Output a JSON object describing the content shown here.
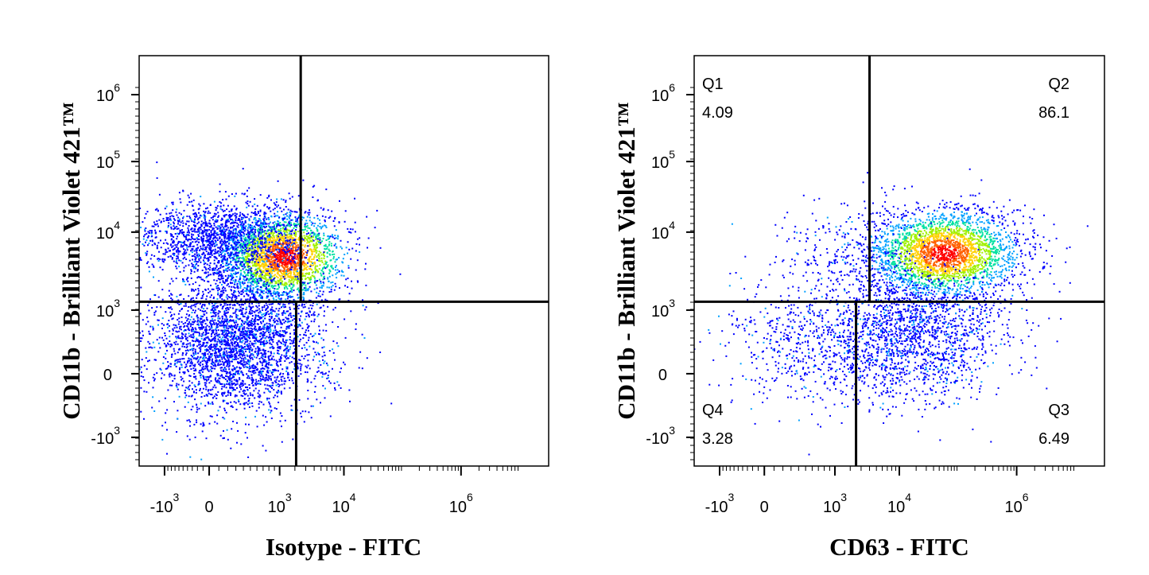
{
  "chart_data": [
    {
      "type": "scatter",
      "title": "",
      "xlabel": "Isotype - FITC",
      "ylabel": "CD11b - Brilliant Violet 421™",
      "x_scale": "biexponential",
      "y_scale": "biexponential",
      "x_ticks": [
        {
          "value": -1000,
          "base": "-10",
          "exp": "3"
        },
        {
          "value": 0,
          "base": "0",
          "exp": ""
        },
        {
          "value": 1000,
          "base": "10",
          "exp": "3"
        },
        {
          "value": 10000,
          "base": "10",
          "exp": "4"
        },
        {
          "value": 1000000,
          "base": "10",
          "exp": "6"
        }
      ],
      "y_ticks": [
        {
          "value": -1000,
          "base": "-10",
          "exp": "3"
        },
        {
          "value": 0,
          "base": "0",
          "exp": ""
        },
        {
          "value": 1000,
          "base": "10",
          "exp": "3"
        },
        {
          "value": 10000,
          "base": "10",
          "exp": "4"
        },
        {
          "value": 100000,
          "base": "10",
          "exp": "5"
        },
        {
          "value": 1000000,
          "base": "10",
          "exp": "6"
        }
      ],
      "gate": {
        "x": 2500,
        "y": 1400
      },
      "populations": [
        {
          "x_center": 1300,
          "y_center": 5500,
          "note": "dense high-CD11b cluster"
        },
        {
          "x_center": -200,
          "y_center": 9000,
          "note": "sparse high-CD11b spread"
        },
        {
          "x_center": 300,
          "y_center": 300,
          "note": "low-CD11b cloud"
        }
      ],
      "quadrants": [],
      "colormap": [
        "#0000ff",
        "#00a0ff",
        "#00e0a0",
        "#a0f000",
        "#ffd000",
        "#ff6000",
        "#ff0000"
      ]
    },
    {
      "type": "scatter",
      "title": "",
      "xlabel": "CD63 - FITC",
      "ylabel": "CD11b - Brilliant Violet 421™",
      "x_scale": "biexponential",
      "y_scale": "biexponential",
      "x_ticks": [
        {
          "value": -1000,
          "base": "-10",
          "exp": "3"
        },
        {
          "value": 0,
          "base": "0",
          "exp": ""
        },
        {
          "value": 1000,
          "base": "10",
          "exp": "3"
        },
        {
          "value": 10000,
          "base": "10",
          "exp": "4"
        },
        {
          "value": 1000000,
          "base": "10",
          "exp": "6"
        }
      ],
      "y_ticks": [
        {
          "value": -1000,
          "base": "-10",
          "exp": "3"
        },
        {
          "value": 0,
          "base": "0",
          "exp": ""
        },
        {
          "value": 1000,
          "base": "10",
          "exp": "3"
        },
        {
          "value": 10000,
          "base": "10",
          "exp": "4"
        },
        {
          "value": 100000,
          "base": "10",
          "exp": "5"
        },
        {
          "value": 1000000,
          "base": "10",
          "exp": "6"
        }
      ],
      "gate": {
        "x": 4000,
        "y": 1400,
        "x_lower": 2500
      },
      "populations": [
        {
          "x_center": 60000,
          "y_center": 6000,
          "note": "dense Q2 cluster"
        },
        {
          "x_center": 15000,
          "y_center": 500,
          "note": "Q3 cloud"
        },
        {
          "x_center": 500,
          "y_center": 400,
          "note": "Q4 sparse"
        }
      ],
      "quadrants": [
        {
          "name": "Q1",
          "value": "4.09",
          "position": "top-left"
        },
        {
          "name": "Q2",
          "value": "86.1",
          "position": "top-right"
        },
        {
          "name": "Q4",
          "value": "3.28",
          "position": "bottom-left"
        },
        {
          "name": "Q3",
          "value": "6.49",
          "position": "bottom-right"
        }
      ],
      "colormap": [
        "#0000ff",
        "#00a0ff",
        "#00e0a0",
        "#a0f000",
        "#ffd000",
        "#ff6000",
        "#ff0000"
      ]
    }
  ]
}
